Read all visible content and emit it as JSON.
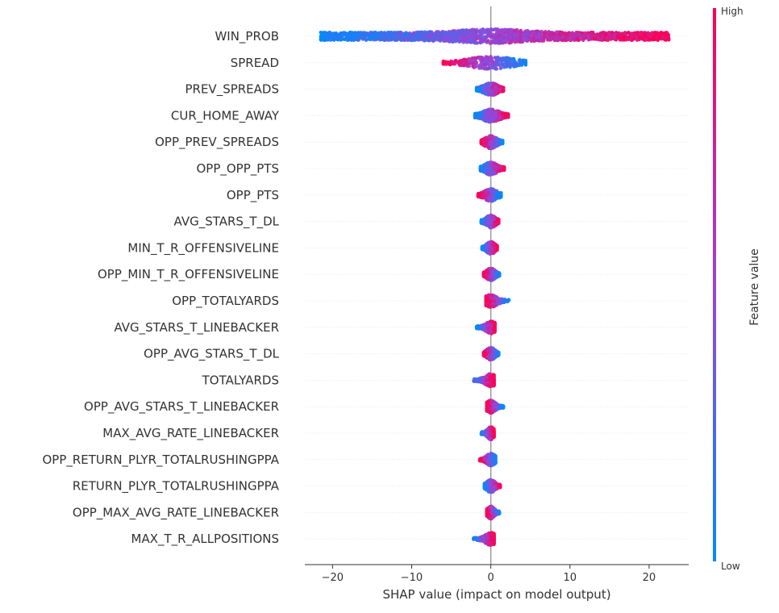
{
  "chart_data": {
    "type": "scatter",
    "subtype": "shap-beeswarm",
    "title": "",
    "xlabel": "SHAP value (impact on model output)",
    "ylabel": "",
    "xlim": [
      -23.5,
      25
    ],
    "xticks": [
      -20,
      -10,
      0,
      10,
      20
    ],
    "xtick_labels": [
      "−20",
      "−10",
      "0",
      "10",
      "20"
    ],
    "grid": false,
    "zero_line": true,
    "colorbar": {
      "title": "Feature value",
      "high_label": "High",
      "low_label": "Low",
      "low_color": "#008bfb",
      "high_color": "#ff0052"
    },
    "features": [
      {
        "name": "WIN_PROB",
        "min": -21.5,
        "max": 22.5,
        "low_side": "negative"
      },
      {
        "name": "SPREAD",
        "min": -6.0,
        "max": 4.4,
        "low_side": "positive"
      },
      {
        "name": "PREV_SPREADS",
        "min": -1.8,
        "max": 1.6,
        "low_side": "negative"
      },
      {
        "name": "CUR_HOME_AWAY",
        "min": -2.0,
        "max": 2.2,
        "low_side": "negative"
      },
      {
        "name": "OPP_PREV_SPREADS",
        "min": -1.2,
        "max": 1.5,
        "low_side": "positive"
      },
      {
        "name": "OPP_OPP_PTS",
        "min": -1.3,
        "max": 1.7,
        "low_side": "negative"
      },
      {
        "name": "OPP_PTS",
        "min": -1.6,
        "max": 1.3,
        "low_side": "positive"
      },
      {
        "name": "AVG_STARS_T_DL",
        "min": -1.2,
        "max": 1.0,
        "low_side": "negative"
      },
      {
        "name": "MIN_T_R_OFFENSIVELINE",
        "min": -1.1,
        "max": 0.8,
        "low_side": "negative"
      },
      {
        "name": "OPP_MIN_T_R_OFFENSIVELINE",
        "min": -0.9,
        "max": 1.1,
        "low_side": "positive"
      },
      {
        "name": "OPP_TOTALYARDS",
        "min": -0.6,
        "max": 2.3,
        "low_side": "positive"
      },
      {
        "name": "AVG_STARS_T_LINEBACKER",
        "min": -1.8,
        "max": 0.5,
        "low_side": "negative"
      },
      {
        "name": "OPP_AVG_STARS_T_DL",
        "min": -0.9,
        "max": 1.0,
        "low_side": "positive"
      },
      {
        "name": "TOTALYARDS",
        "min": -2.4,
        "max": 0.4,
        "low_side": "negative"
      },
      {
        "name": "OPP_AVG_STARS_T_LINEBACKER",
        "min": -0.5,
        "max": 1.6,
        "low_side": "positive"
      },
      {
        "name": "MAX_AVG_RATE_LINEBACKER",
        "min": -1.2,
        "max": 0.4,
        "low_side": "negative"
      },
      {
        "name": "OPP_RETURN_PLYR_TOTALRUSHINGPPA",
        "min": -1.4,
        "max": 0.6,
        "low_side": "positive"
      },
      {
        "name": "RETURN_PLYR_TOTALRUSHINGPPA",
        "min": -0.8,
        "max": 1.2,
        "low_side": "negative"
      },
      {
        "name": "OPP_MAX_AVG_RATE_LINEBACKER",
        "min": -0.5,
        "max": 1.1,
        "low_side": "positive"
      },
      {
        "name": "MAX_T_R_ALLPOSITIONS",
        "min": -2.2,
        "max": 0.4,
        "low_side": "negative"
      }
    ]
  }
}
